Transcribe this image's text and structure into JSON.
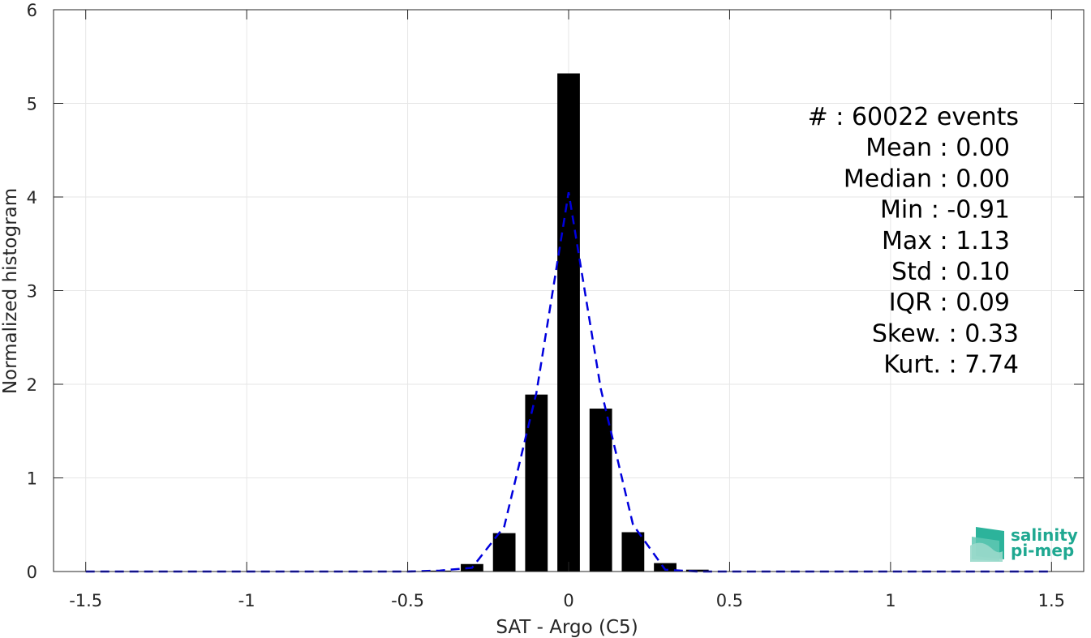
{
  "chart_data": {
    "type": "bar",
    "xlabel": "SAT - Argo (C5)",
    "ylabel": "Normalized histogram",
    "xlim": [
      -1.6,
      1.6
    ],
    "ylim": [
      0,
      6
    ],
    "xticks": [
      -1.5,
      -1,
      -0.5,
      0,
      0.5,
      1,
      1.5
    ],
    "xtick_labels": [
      "-1.5",
      "-1",
      "-0.5",
      "0",
      "0.5",
      "1",
      "1.5"
    ],
    "yticks": [
      0,
      1,
      2,
      3,
      4,
      5,
      6
    ],
    "ytick_labels": [
      "0",
      "1",
      "2",
      "3",
      "4",
      "5",
      "6"
    ],
    "grid": true,
    "bar_width": 0.07,
    "bars": {
      "x": [
        -0.4,
        -0.3,
        -0.2,
        -0.1,
        0.0,
        0.1,
        0.2,
        0.3,
        0.4
      ],
      "values": [
        0.01,
        0.08,
        0.41,
        1.89,
        5.32,
        1.74,
        0.42,
        0.09,
        0.02
      ],
      "color": "#000000"
    },
    "fit_curve": {
      "style": "dashed",
      "color": "#0000dd",
      "x": [
        -1.5,
        -0.5,
        -0.4,
        -0.3,
        -0.2,
        -0.1,
        0.0,
        0.1,
        0.2,
        0.3,
        0.4,
        0.5,
        1.5
      ],
      "y": [
        0,
        0,
        0.01,
        0.04,
        0.48,
        1.91,
        4.05,
        1.95,
        0.5,
        0.02,
        0.0,
        0,
        0
      ]
    },
    "stats": [
      {
        "label": "#",
        "value": " : 60022 events"
      },
      {
        "label": "Mean",
        "value": " : 0.00"
      },
      {
        "label": "Median",
        "value": " : 0.00"
      },
      {
        "label": "Min",
        "value": " : -0.91"
      },
      {
        "label": "Max",
        "value": " : 1.13"
      },
      {
        "label": "Std",
        "value": " : 0.10"
      },
      {
        "label": "IQR",
        "value": " : 0.09"
      },
      {
        "label": "Skew.",
        "value": " : 0.33"
      },
      {
        "label": "Kurt.",
        "value": " : 7.74"
      }
    ]
  },
  "logo": {
    "line1": "salinity",
    "line2": "pi-mep",
    "color": "#1fa891"
  }
}
